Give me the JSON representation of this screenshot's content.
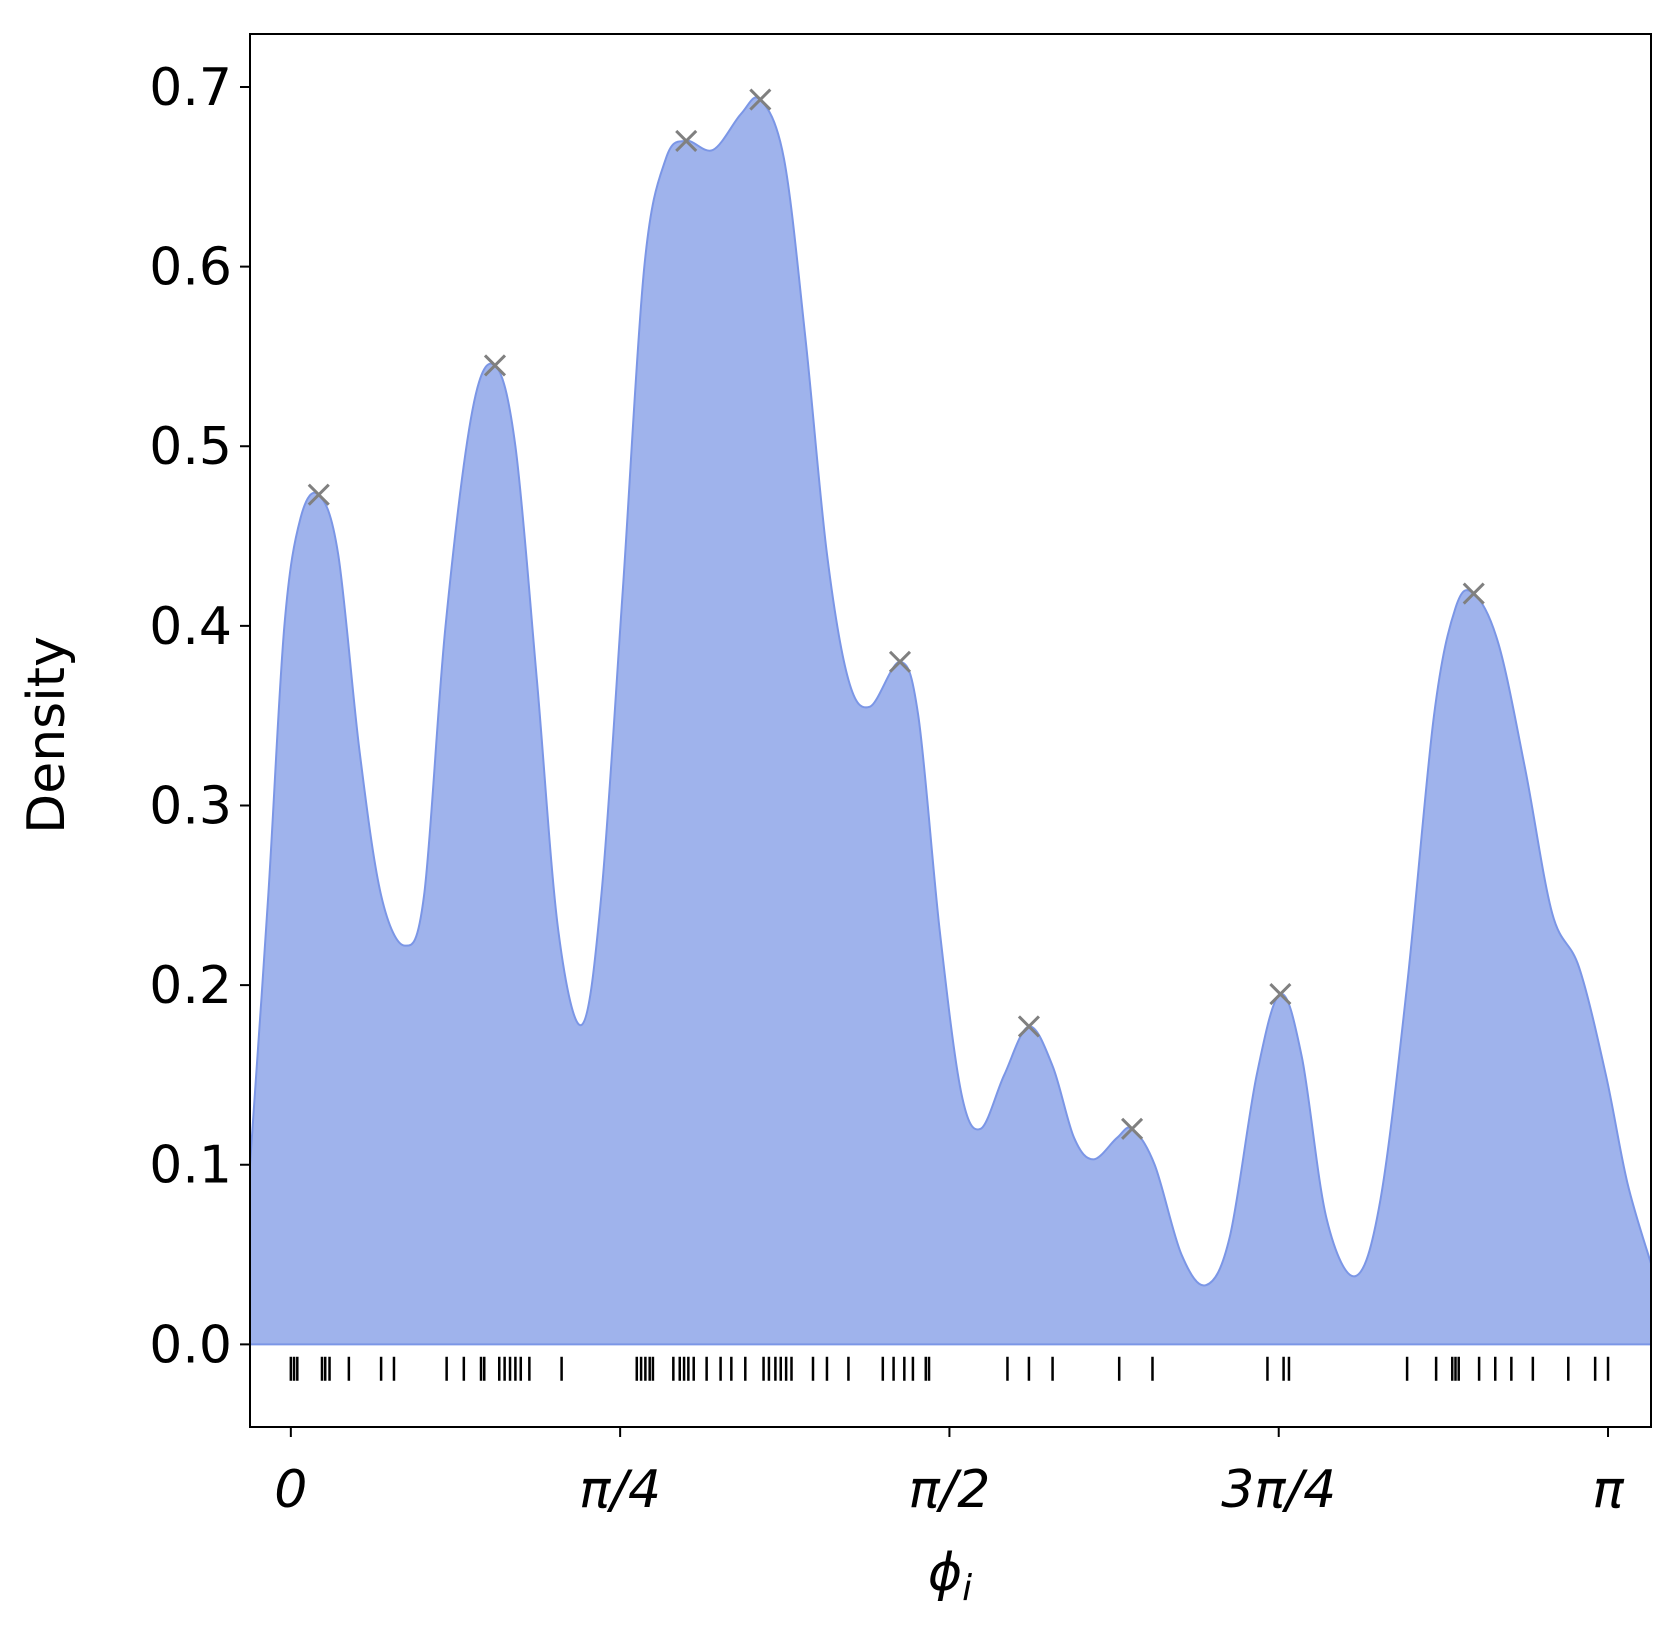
{
  "chart_data": {
    "type": "area",
    "ylabel": "Density",
    "xlabel": {
      "text": "ϕ",
      "subscript": "i"
    },
    "x": [
      -0.0974,
      -0.0538,
      -0.0154,
      0.0231,
      0.0666,
      0.1128,
      0.164,
      0.2153,
      0.2716,
      0.3178,
      0.369,
      0.4331,
      0.4869,
      0.5356,
      0.5868,
      0.6381,
      0.6944,
      0.7406,
      0.7918,
      0.8431,
      0.8943,
      0.943,
      1.0071,
      1.0737,
      1.1198,
      1.1762,
      1.2274,
      1.2787,
      1.3299,
      1.3812,
      1.4529,
      1.4965,
      1.5478,
      1.599,
      1.6451,
      1.7015,
      1.7604,
      1.8168,
      1.8681,
      1.9142,
      1.9706,
      2.0064,
      2.0603,
      2.1243,
      2.1833,
      2.2396,
      2.3037,
      2.3601,
      2.4113,
      2.4703,
      2.5394,
      2.5984,
      2.6624,
      2.7265,
      2.7778,
      2.8213,
      2.8803,
      2.9443,
      3.0084,
      3.0724,
      3.1365,
      3.1877,
      3.2441
    ],
    "values": [
      0.1,
      0.25,
      0.4,
      0.46,
      0.473,
      0.44,
      0.33,
      0.25,
      0.222,
      0.25,
      0.4,
      0.52,
      0.545,
      0.5,
      0.37,
      0.23,
      0.178,
      0.25,
      0.42,
      0.6,
      0.66,
      0.67,
      0.665,
      0.685,
      0.693,
      0.66,
      0.56,
      0.44,
      0.37,
      0.355,
      0.38,
      0.35,
      0.23,
      0.14,
      0.12,
      0.15,
      0.177,
      0.155,
      0.115,
      0.103,
      0.115,
      0.12,
      0.1,
      0.05,
      0.033,
      0.06,
      0.15,
      0.195,
      0.16,
      0.07,
      0.038,
      0.08,
      0.2,
      0.35,
      0.41,
      0.418,
      0.39,
      0.32,
      0.24,
      0.21,
      0.15,
      0.09,
      0.045
    ],
    "color": "#9fb3ec",
    "line_color": "#7b96e6",
    "peaks": {
      "x": [
        0.0666,
        0.4869,
        0.943,
        1.1198,
        1.4529,
        1.7604,
        2.0064,
        2.3601,
        2.8213
      ],
      "values": [
        0.473,
        0.545,
        0.67,
        0.693,
        0.38,
        0.177,
        0.12,
        0.195,
        0.418
      ],
      "color": "#808080"
    },
    "rug": {
      "x": [
        0,
        0.0077,
        0.0154,
        0.0743,
        0.082,
        0.0923,
        0.1384,
        0.2153,
        0.246,
        0.3716,
        0.4126,
        0.4536,
        0.4613,
        0.4971,
        0.5099,
        0.5228,
        0.5356,
        0.5484,
        0.5689,
        0.6458,
        0.8251,
        0.8354,
        0.8456,
        0.8559,
        0.8636,
        0.9123,
        0.9276,
        0.9379,
        0.9481,
        0.9609,
        0.9917,
        1.025,
        1.0506,
        1.0839,
        1.1275,
        1.1403,
        1.1557,
        1.1685,
        1.1813,
        1.1941,
        1.2454,
        1.2787,
        1.3299,
        1.4119,
        1.4376,
        1.4632,
        1.4837,
        1.5144,
        1.5221,
        1.7092,
        1.7604,
        1.8168,
        1.9757,
        2.0551,
        2.3293,
        2.3678,
        2.3806,
        2.6624,
        2.7316,
        2.7701,
        2.7778,
        2.7855,
        2.8341,
        2.8726,
        2.911,
        2.9623,
        3.0468,
        3.1109,
        3.1416
      ],
      "color": "#000000"
    },
    "xlim": [
      -0.0974,
      3.2441
    ],
    "ylim": [
      -0.046,
      0.7295
    ],
    "xticks": [
      {
        "value": 0,
        "label": "0"
      },
      {
        "value": 0.7854,
        "label": "π/4"
      },
      {
        "value": 1.5708,
        "label": "π/2"
      },
      {
        "value": 2.3562,
        "label": "3π/4"
      },
      {
        "value": 3.1416,
        "label": "π"
      }
    ],
    "yticks": [
      {
        "value": 0,
        "label": "0.0"
      },
      0.1,
      0.2,
      0.3,
      0.4,
      0.5,
      0.6,
      0.7
    ],
    "grid": false
  }
}
